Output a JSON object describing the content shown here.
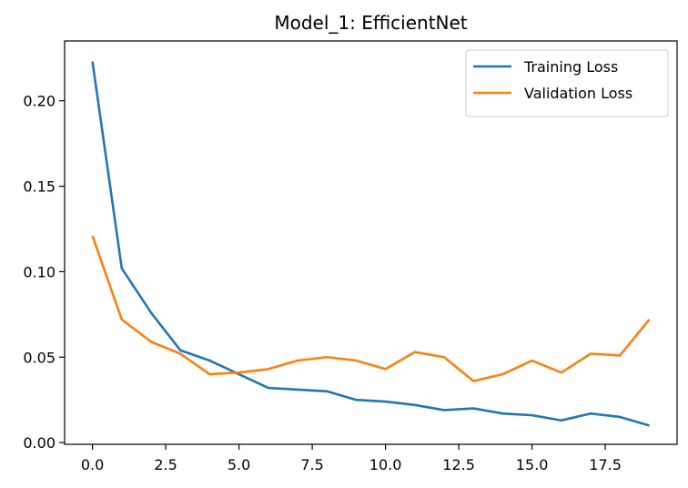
{
  "chart_data": {
    "type": "line",
    "title": "Model_1: EfficientNet",
    "xlabel": "",
    "ylabel": "",
    "xlim": [
      -0.95,
      19.95
    ],
    "ylim": [
      -0.001,
      0.235
    ],
    "xticks": [
      0.0,
      2.5,
      5.0,
      7.5,
      10.0,
      12.5,
      15.0,
      17.5
    ],
    "xtick_labels": [
      "0.0",
      "2.5",
      "5.0",
      "7.5",
      "10.0",
      "12.5",
      "15.0",
      "17.5"
    ],
    "yticks": [
      0.0,
      0.05,
      0.1,
      0.15,
      0.2
    ],
    "ytick_labels": [
      "0.00",
      "0.05",
      "0.10",
      "0.15",
      "0.20"
    ],
    "grid": false,
    "legend_position": "top-right",
    "x": [
      0,
      1,
      2,
      3,
      4,
      5,
      6,
      7,
      8,
      9,
      10,
      11,
      12,
      13,
      14,
      15,
      16,
      17,
      18,
      19
    ],
    "series": [
      {
        "name": "Training Loss",
        "color": "#1f77b4",
        "values": [
          0.223,
          0.102,
          0.076,
          0.054,
          0.048,
          0.04,
          0.032,
          0.031,
          0.03,
          0.025,
          0.024,
          0.022,
          0.019,
          0.02,
          0.017,
          0.016,
          0.013,
          0.017,
          0.015,
          0.01
        ]
      },
      {
        "name": "Validation Loss",
        "color": "#ff7f0e",
        "values": [
          0.121,
          0.072,
          0.059,
          0.052,
          0.04,
          0.041,
          0.043,
          0.048,
          0.05,
          0.048,
          0.043,
          0.053,
          0.05,
          0.036,
          0.04,
          0.048,
          0.041,
          0.052,
          0.051,
          0.072
        ]
      }
    ]
  }
}
